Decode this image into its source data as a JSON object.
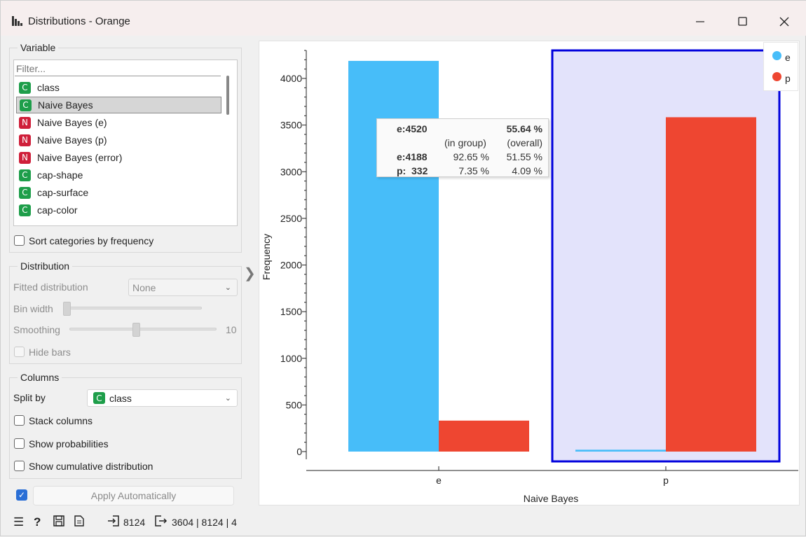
{
  "window": {
    "title": "Distributions - Orange"
  },
  "variable": {
    "group_label": "Variable",
    "filter_placeholder": "Filter...",
    "items": [
      {
        "type": "C",
        "label": "class"
      },
      {
        "type": "C",
        "label": "Naive Bayes",
        "selected": true
      },
      {
        "type": "N",
        "label": "Naive Bayes (e)"
      },
      {
        "type": "N",
        "label": "Naive Bayes (p)"
      },
      {
        "type": "N",
        "label": "Naive Bayes (error)"
      },
      {
        "type": "C",
        "label": "cap-shape"
      },
      {
        "type": "C",
        "label": "cap-surface"
      },
      {
        "type": "C",
        "label": "cap-color"
      }
    ],
    "sort_label": "Sort categories by frequency"
  },
  "distribution": {
    "group_label": "Distribution",
    "fitted_label": "Fitted distribution",
    "fitted_value": "None",
    "bin_width_label": "Bin width",
    "bin_width_position": 0,
    "smoothing_label": "Smoothing",
    "smoothing_value": "10",
    "smoothing_position": 0.45,
    "hide_bars_label": "Hide bars"
  },
  "columns": {
    "group_label": "Columns",
    "split_by_label": "Split by",
    "split_by_badge": "C",
    "split_by_value": "class",
    "stack_label": "Stack columns",
    "probabilities_label": "Show probabilities",
    "cumulative_label": "Show cumulative distribution"
  },
  "apply": {
    "label": "Apply Automatically",
    "checked": true
  },
  "status": {
    "input_count": "8124",
    "output_summary": "3604 | 8124 | 4"
  },
  "tooltip": {
    "header_left": "e:4520",
    "header_right": "55.64 %",
    "sub_group": "(in group)",
    "sub_overall": "(overall)",
    "rows": [
      {
        "label": "e:4188",
        "group": "92.65 %",
        "overall": "51.55 %"
      },
      {
        "label": "p:  332",
        "group": "7.35 %",
        "overall": "4.09 %"
      }
    ]
  },
  "colors": {
    "e": "#47bdf9",
    "p": "#ee4631",
    "selection": "#0000dd",
    "selection_fill": "#e3e3fb"
  },
  "chart_data": {
    "type": "bar",
    "categories": [
      "e",
      "p"
    ],
    "series": [
      {
        "name": "e",
        "values": [
          4188,
          20
        ]
      },
      {
        "name": "p",
        "values": [
          332,
          3584
        ]
      }
    ],
    "xlabel": "Naive Bayes",
    "ylabel": "Frequency",
    "yticks": [
      0,
      500,
      1000,
      1500,
      2000,
      2500,
      3000,
      3500,
      4000
    ],
    "ylim": [
      0,
      4300
    ],
    "selected_category": "p",
    "legend": [
      "e",
      "p"
    ],
    "legend_position": "top-right",
    "grid": false
  }
}
